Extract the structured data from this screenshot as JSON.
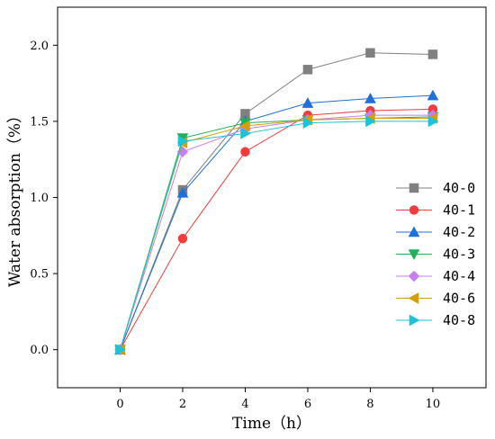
{
  "chart_data": {
    "type": "line",
    "xlabel": "Time（h）",
    "ylabel": "Water absorption（%）",
    "xlim": [
      -2,
      11.7
    ],
    "ylim": [
      -0.25,
      2.25
    ],
    "xticks": [
      0,
      2,
      4,
      6,
      8,
      10
    ],
    "yticks": [
      0.0,
      0.5,
      1.0,
      1.5,
      2.0
    ],
    "xtick_labels": [
      "0",
      "2",
      "4",
      "6",
      "8",
      "10"
    ],
    "ytick_labels": [
      "0.0",
      "0.5",
      "1.0",
      "1.5",
      "2.0"
    ],
    "grid": false,
    "legend_position": "right",
    "x": [
      0,
      2,
      4,
      6,
      8,
      10
    ],
    "series": [
      {
        "name": "40-0",
        "color": "#808080",
        "marker": "square",
        "values": [
          0.0,
          1.05,
          1.55,
          1.84,
          1.95,
          1.94
        ]
      },
      {
        "name": "40-1",
        "color": "#f03c3c",
        "marker": "circle",
        "values": [
          0.0,
          0.73,
          1.3,
          1.54,
          1.57,
          1.58
        ]
      },
      {
        "name": "40-2",
        "color": "#1f6fdc",
        "marker": "triangle-up",
        "values": [
          0.0,
          1.03,
          1.5,
          1.62,
          1.65,
          1.67
        ]
      },
      {
        "name": "40-3",
        "color": "#1fb05a",
        "marker": "triangle-down",
        "values": [
          0.0,
          1.39,
          1.49,
          1.51,
          1.52,
          1.53
        ]
      },
      {
        "name": "40-4",
        "color": "#c77ef0",
        "marker": "diamond",
        "values": [
          0.0,
          1.3,
          1.45,
          1.51,
          1.54,
          1.54
        ]
      },
      {
        "name": "40-6",
        "color": "#d4a000",
        "marker": "triangle-left",
        "values": [
          0.0,
          1.36,
          1.47,
          1.51,
          1.52,
          1.52
        ]
      },
      {
        "name": "40-8",
        "color": "#19c4d8",
        "marker": "triangle-right",
        "values": [
          0.0,
          1.37,
          1.42,
          1.49,
          1.5,
          1.5
        ]
      }
    ]
  }
}
